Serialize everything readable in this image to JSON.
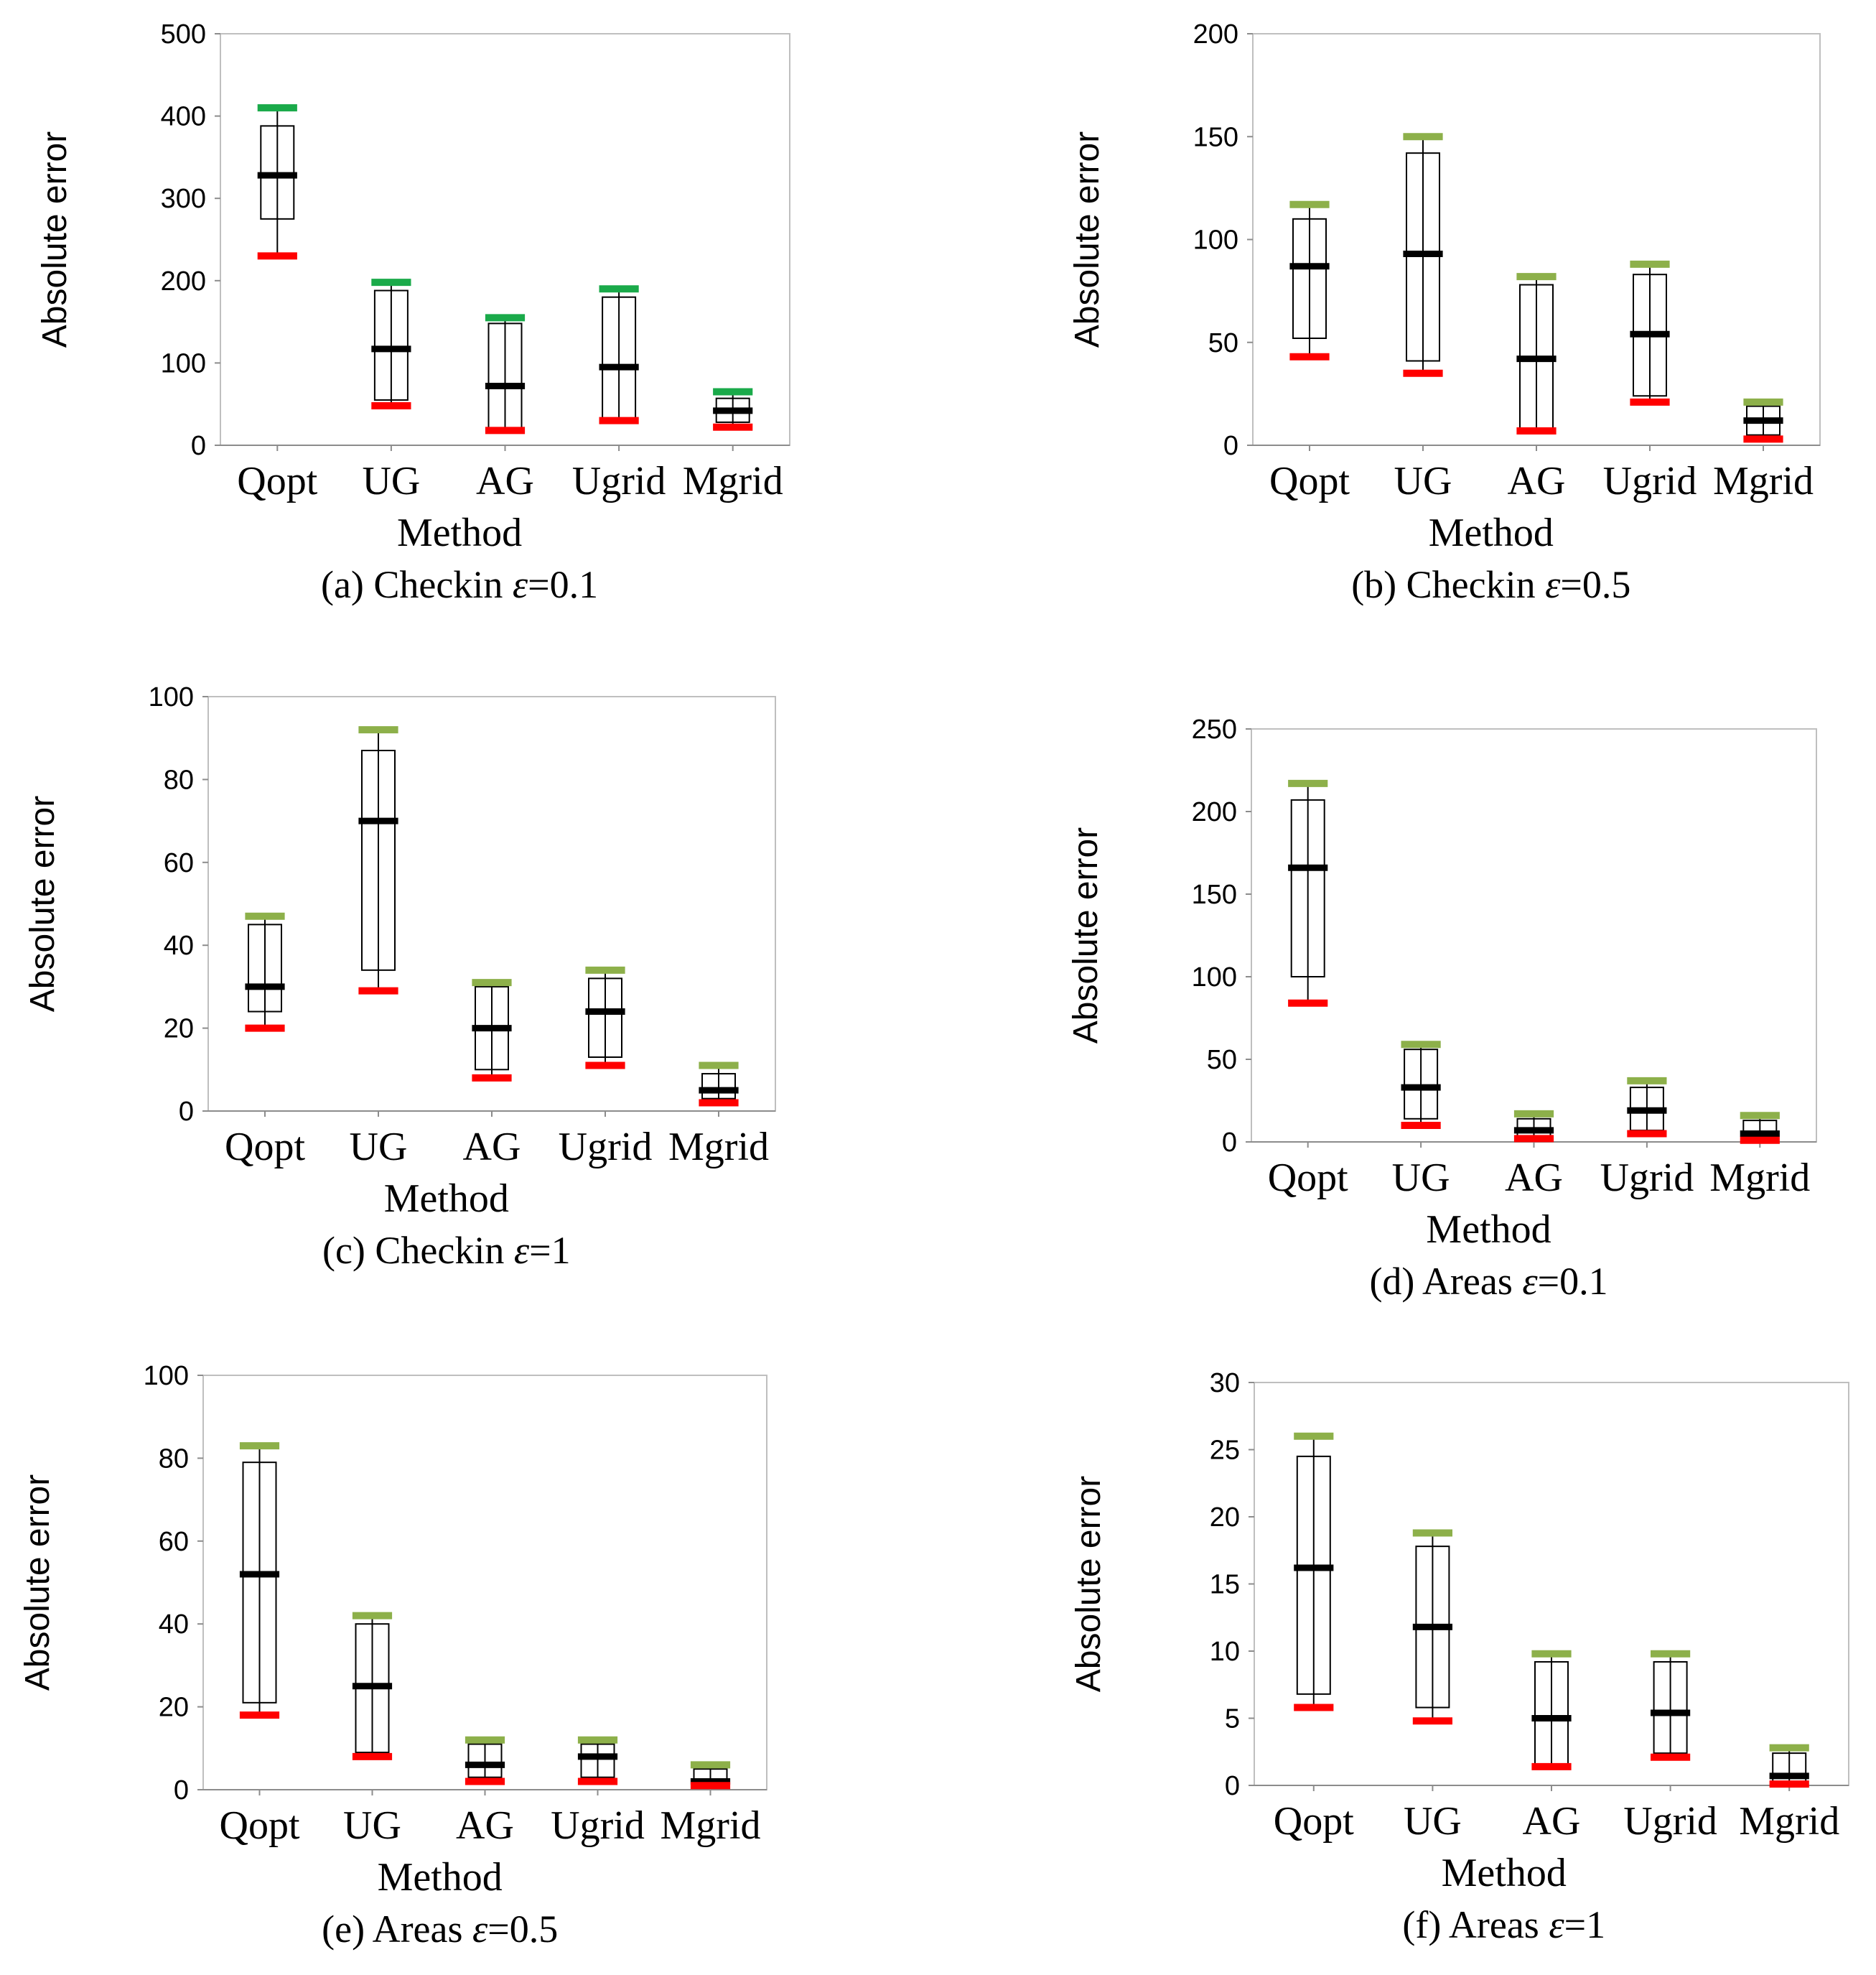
{
  "chart_data": [
    {
      "type": "boxplot",
      "caption": "(a) Checkin ε=0.1",
      "caption_prefix": "(a) Checkin ",
      "caption_eps": "ε",
      "caption_suffix": "=0.1",
      "xlabel": "Method",
      "ylabel": "Absolute error",
      "ylim": [
        0,
        500
      ],
      "yticks": [
        "0",
        "100",
        "200",
        "300",
        "400",
        "500"
      ],
      "categories": [
        "Qopt",
        "UG",
        "AG",
        "Ugrid",
        "Mgrid"
      ],
      "max_color": "#1aaa4a",
      "min_color": "#ff0000",
      "series": [
        {
          "name": "Qopt",
          "min": 230,
          "q1": 275,
          "median": 328,
          "q3": 388,
          "max": 410
        },
        {
          "name": "UG",
          "min": 48,
          "q1": 55,
          "median": 117,
          "q3": 188,
          "max": 198
        },
        {
          "name": "AG",
          "min": 18,
          "q1": 20,
          "median": 72,
          "q3": 148,
          "max": 155
        },
        {
          "name": "Ugrid",
          "min": 30,
          "q1": 33,
          "median": 95,
          "q3": 180,
          "max": 190
        },
        {
          "name": "Mgrid",
          "min": 22,
          "q1": 28,
          "median": 42,
          "q3": 57,
          "max": 65
        }
      ]
    },
    {
      "type": "boxplot",
      "caption": "(b) Checkin ε=0.5",
      "caption_prefix": "(b) Checkin ",
      "caption_eps": "ε",
      "caption_suffix": "=0.5",
      "xlabel": "Method",
      "ylabel": "Absolute error",
      "ylim": [
        0,
        200
      ],
      "yticks": [
        "0",
        "50",
        "100",
        "150",
        "200"
      ],
      "categories": [
        "Qopt",
        "UG",
        "AG",
        "Ugrid",
        "Mgrid"
      ],
      "max_color": "#8db04a",
      "min_color": "#ff0000",
      "series": [
        {
          "name": "Qopt",
          "min": 43,
          "q1": 52,
          "median": 87,
          "q3": 110,
          "max": 117
        },
        {
          "name": "UG",
          "min": 35,
          "q1": 41,
          "median": 93,
          "q3": 142,
          "max": 150
        },
        {
          "name": "AG",
          "min": 7,
          "q1": 8,
          "median": 42,
          "q3": 78,
          "max": 82
        },
        {
          "name": "Ugrid",
          "min": 21,
          "q1": 24,
          "median": 54,
          "q3": 83,
          "max": 88
        },
        {
          "name": "Mgrid",
          "min": 3,
          "q1": 5,
          "median": 12,
          "q3": 19,
          "max": 21
        }
      ]
    },
    {
      "type": "boxplot",
      "caption": "(c) Checkin ε=1",
      "caption_prefix": "(c) Checkin ",
      "caption_eps": "ε",
      "caption_suffix": "=1",
      "xlabel": "Method",
      "ylabel": "Absolute error",
      "ylim": [
        0,
        100
      ],
      "yticks": [
        "0",
        "20",
        "40",
        "60",
        "80",
        "100"
      ],
      "categories": [
        "Qopt",
        "UG",
        "AG",
        "Ugrid",
        "Mgrid"
      ],
      "max_color": "#8db04a",
      "min_color": "#ff0000",
      "series": [
        {
          "name": "Qopt",
          "min": 20,
          "q1": 24,
          "median": 30,
          "q3": 45,
          "max": 47
        },
        {
          "name": "UG",
          "min": 29,
          "q1": 34,
          "median": 70,
          "q3": 87,
          "max": 92
        },
        {
          "name": "AG",
          "min": 8,
          "q1": 10,
          "median": 20,
          "q3": 30,
          "max": 31
        },
        {
          "name": "Ugrid",
          "min": 11,
          "q1": 13,
          "median": 24,
          "q3": 32,
          "max": 34
        },
        {
          "name": "Mgrid",
          "min": 2,
          "q1": 3,
          "median": 5,
          "q3": 9,
          "max": 11
        }
      ]
    },
    {
      "type": "boxplot",
      "caption": "(d) Areas ε=0.1",
      "caption_prefix": "(d) Areas ",
      "caption_eps": "ε",
      "caption_suffix": "=0.1",
      "xlabel": "Method",
      "ylabel": "Absolute error",
      "ylim": [
        0,
        250
      ],
      "yticks": [
        "0",
        "50",
        "100",
        "150",
        "200",
        "250"
      ],
      "categories": [
        "Qopt",
        "UG",
        "AG",
        "Ugrid",
        "Mgrid"
      ],
      "max_color": "#8db04a",
      "min_color": "#ff0000",
      "series": [
        {
          "name": "Qopt",
          "min": 84,
          "q1": 100,
          "median": 166,
          "q3": 207,
          "max": 217
        },
        {
          "name": "UG",
          "min": 10,
          "q1": 14,
          "median": 33,
          "q3": 56,
          "max": 59
        },
        {
          "name": "AG",
          "min": 2,
          "q1": 3,
          "median": 7,
          "q3": 14,
          "max": 17
        },
        {
          "name": "Ugrid",
          "min": 5,
          "q1": 7,
          "median": 19,
          "q3": 33,
          "max": 37
        },
        {
          "name": "Mgrid",
          "min": 1,
          "q1": 2,
          "median": 5,
          "q3": 13,
          "max": 16
        }
      ]
    },
    {
      "type": "boxplot",
      "caption": "(e) Areas ε=0.5",
      "caption_prefix": "(e) Areas ",
      "caption_eps": "ε",
      "caption_suffix": "=0.5",
      "xlabel": "Method",
      "ylabel": "Absolute error",
      "ylim": [
        0,
        100
      ],
      "yticks": [
        "0",
        "20",
        "40",
        "60",
        "80",
        "100"
      ],
      "categories": [
        "Qopt",
        "UG",
        "AG",
        "Ugrid",
        "Mgrid"
      ],
      "max_color": "#8db04a",
      "min_color": "#ff0000",
      "series": [
        {
          "name": "Qopt",
          "min": 18,
          "q1": 21,
          "median": 52,
          "q3": 79,
          "max": 83
        },
        {
          "name": "UG",
          "min": 8,
          "q1": 9,
          "median": 25,
          "q3": 40,
          "max": 42
        },
        {
          "name": "AG",
          "min": 2,
          "q1": 3,
          "median": 6,
          "q3": 11,
          "max": 12
        },
        {
          "name": "Ugrid",
          "min": 2,
          "q1": 3,
          "median": 8,
          "q3": 11,
          "max": 12
        },
        {
          "name": "Mgrid",
          "min": 1,
          "q1": 1,
          "median": 2,
          "q3": 5,
          "max": 6
        }
      ]
    },
    {
      "type": "boxplot",
      "caption": "(f) Areas ε=1",
      "caption_prefix": "(f) Areas ",
      "caption_eps": "ε",
      "caption_suffix": "=1",
      "xlabel": "Method",
      "ylabel": "Absolute error",
      "ylim": [
        0,
        30
      ],
      "yticks": [
        "0",
        "5",
        "10",
        "15",
        "20",
        "25",
        "30"
      ],
      "categories": [
        "Qopt",
        "UG",
        "AG",
        "Ugrid",
        "Mgrid"
      ],
      "max_color": "#8db04a",
      "min_color": "#ff0000",
      "series": [
        {
          "name": "Qopt",
          "min": 5.8,
          "q1": 6.8,
          "median": 16.2,
          "q3": 24.5,
          "max": 26.0
        },
        {
          "name": "UG",
          "min": 4.8,
          "q1": 5.8,
          "median": 11.8,
          "q3": 17.8,
          "max": 18.8
        },
        {
          "name": "AG",
          "min": 1.4,
          "q1": 1.6,
          "median": 5.0,
          "q3": 9.2,
          "max": 9.8
        },
        {
          "name": "Ugrid",
          "min": 2.1,
          "q1": 2.4,
          "median": 5.4,
          "q3": 9.2,
          "max": 9.8
        },
        {
          "name": "Mgrid",
          "min": 0.1,
          "q1": 0.2,
          "median": 0.7,
          "q3": 2.4,
          "max": 2.8
        }
      ]
    }
  ]
}
